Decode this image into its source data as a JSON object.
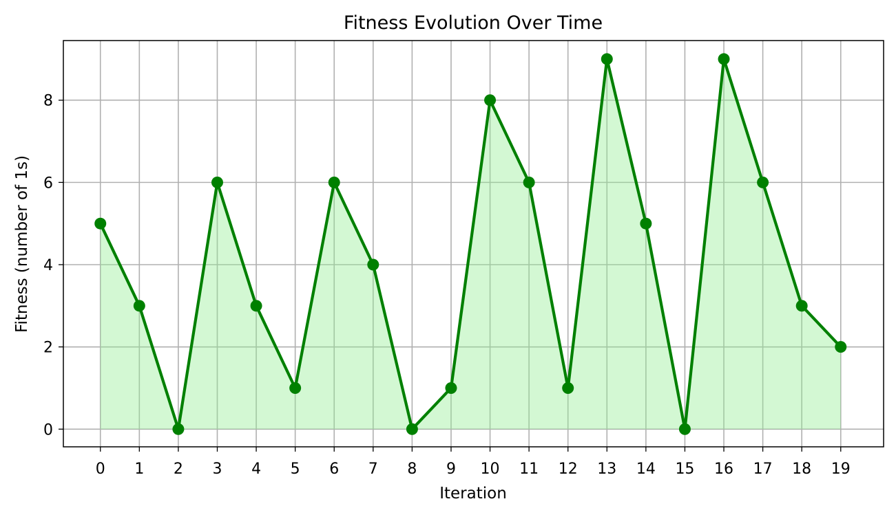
{
  "chart_data": {
    "type": "area",
    "title": "Fitness Evolution Over Time",
    "xlabel": "Iteration",
    "ylabel": "Fitness (number of 1s)",
    "x": [
      0,
      1,
      2,
      3,
      4,
      5,
      6,
      7,
      8,
      9,
      10,
      11,
      12,
      13,
      14,
      15,
      16,
      17,
      18,
      19
    ],
    "y": [
      5,
      3,
      0,
      6,
      3,
      1,
      6,
      4,
      0,
      1,
      8,
      6,
      1,
      9,
      5,
      0,
      9,
      6,
      3,
      2
    ],
    "xlim": [
      -0.95,
      20.1
    ],
    "ylim": [
      -0.43,
      9.45
    ],
    "x_ticks": [
      "0",
      "1",
      "2",
      "3",
      "4",
      "5",
      "6",
      "7",
      "8",
      "9",
      "10",
      "11",
      "12",
      "13",
      "14",
      "15",
      "16",
      "17",
      "18",
      "19"
    ],
    "y_ticks": [
      "0",
      "2",
      "4",
      "6",
      "8"
    ],
    "grid": true,
    "markers": true,
    "colors": {
      "line": "#008000",
      "fill": "#90ee90",
      "grid": "#b0b0b0",
      "axes": "#000000"
    }
  }
}
